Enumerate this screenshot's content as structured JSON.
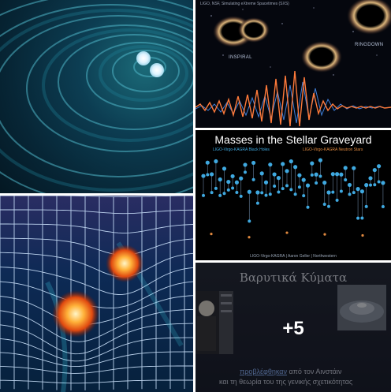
{
  "gallery": {
    "more_count": "+5",
    "colors": {
      "overlay": "#000000",
      "graveyard_blue": "#3fa9e0",
      "graveyard_orange": "#e0893f",
      "chirp_orange": "#ff7a3a",
      "chirp_blue": "#3f7fd8"
    }
  },
  "tile_merger": {
    "caption": "LIGO, NSF, Simulating eXtreme Spacetimes (SXS)",
    "label_inspiral": "INSPIRAL",
    "label_ringdown": "RINGDOWN"
  },
  "tile_graveyard": {
    "title": "Masses in the Stellar Graveyard",
    "legend_black_holes": "LIGO-Virgo-KAGRA Black Holes",
    "legend_neutron_stars": "LIGO-Virgo-KAGRA Neutron Stars",
    "footer": "LIGO-Virgo-KAGRA | Aaron Geller | Northwestern"
  },
  "tile_slide": {
    "title": "Βαρυτικά Κύματα",
    "link_text": "προβλέφθηκαν",
    "line1_rest": " από τον Αινστάιν",
    "line2": "και τη θεωρία του της γενικής σχετικότητας"
  }
}
